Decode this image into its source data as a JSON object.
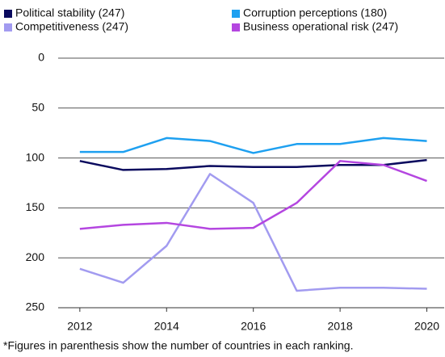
{
  "chart_data": {
    "type": "line",
    "x": [
      2012,
      2013,
      2014,
      2015,
      2016,
      2017,
      2018,
      2019,
      2020
    ],
    "xlim": [
      2011.5,
      2020.4
    ],
    "xticks": [
      2012,
      2014,
      2016,
      2018,
      2020
    ],
    "ylim": [
      0,
      250
    ],
    "yticks": [
      0,
      50,
      100,
      150,
      200,
      250
    ],
    "y_inverted": true,
    "grid": true,
    "legend": "top",
    "series": [
      {
        "name": "Political stability (247)",
        "color": "#0a0a5e",
        "values": [
          103,
          112,
          111,
          108,
          109,
          109,
          107,
          107,
          102
        ]
      },
      {
        "name": "Corruption perceptions (180)",
        "color": "#1ea0f0",
        "values": [
          94,
          94,
          80,
          83,
          95,
          86,
          86,
          80,
          83
        ]
      },
      {
        "name": "Competitiveness (247)",
        "color": "#a29bf0",
        "values": [
          211,
          225,
          188,
          116,
          145,
          233,
          230,
          230,
          231
        ]
      },
      {
        "name": "Business operational risk (247)",
        "color": "#b446e0",
        "values": [
          171,
          167,
          165,
          171,
          170,
          145,
          103,
          107,
          123
        ]
      }
    ],
    "footnote": "*Figures in parenthesis show the number of countries in each ranking."
  }
}
